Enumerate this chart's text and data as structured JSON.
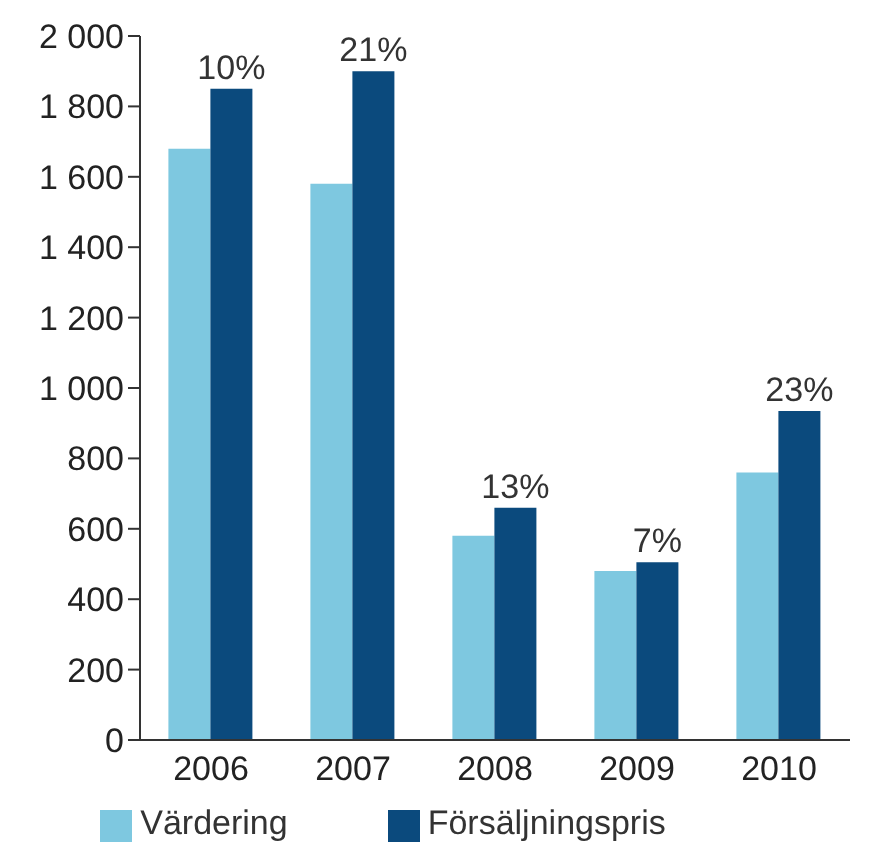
{
  "chart_data": {
    "type": "bar",
    "categories": [
      "2006",
      "2007",
      "2008",
      "2009",
      "2010"
    ],
    "series": [
      {
        "name": "Värdering",
        "color": "#7ec8e0",
        "values": [
          1680,
          1580,
          580,
          480,
          760
        ]
      },
      {
        "name": "Försäljningspris",
        "color": "#0b4a7d",
        "values": [
          1850,
          1900,
          660,
          505,
          935
        ]
      }
    ],
    "annotations": [
      {
        "text": "10%",
        "x": "2006",
        "y": 1850
      },
      {
        "text": "21%",
        "x": "2007",
        "y": 1900
      },
      {
        "text": "13%",
        "x": "2008",
        "y": 660
      },
      {
        "text": "7%",
        "x": "2009",
        "y": 505
      },
      {
        "text": "23%",
        "x": "2010",
        "y": 935
      }
    ],
    "ylim": [
      0,
      2000
    ],
    "yticks": [
      0,
      200,
      400,
      600,
      800,
      {
        "value": 1000,
        "label": "1 000"
      },
      {
        "value": 1200,
        "label": "1 200"
      },
      {
        "value": 1400,
        "label": "1 400"
      },
      {
        "value": 1600,
        "label": "1 600"
      },
      {
        "value": 1800,
        "label": "1 800"
      },
      {
        "value": 2000,
        "label": "2 000"
      }
    ],
    "grid": false,
    "legend": "bottom"
  }
}
